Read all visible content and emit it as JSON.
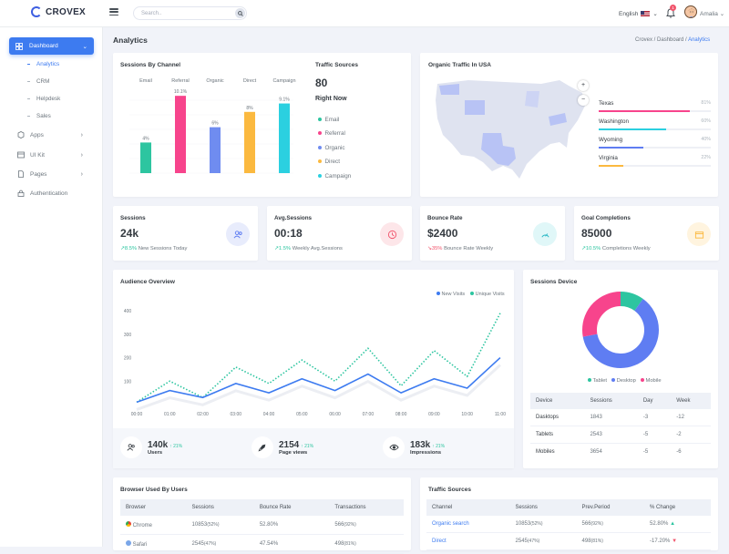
{
  "brand": {
    "name": "CROVEX"
  },
  "search": {
    "placeholder": "Search.."
  },
  "header": {
    "language": "English",
    "notification_count": "1",
    "user_name": "Amalia"
  },
  "sidebar": {
    "dashboard": "Dashboard",
    "subitems": [
      "Analytics",
      "CRM",
      "Helpdesk",
      "Sales"
    ],
    "items": [
      "Apps",
      "UI Kit",
      "Pages",
      "Authentication"
    ]
  },
  "page": {
    "title": "Analytics",
    "breadcrumb": [
      "Crovex",
      "Dashboard",
      "Analytics"
    ]
  },
  "sessions_by_channel": {
    "title": "Sessions By Channel"
  },
  "traffic_sources_mini": {
    "title": "Traffic Sources",
    "total": "80",
    "subtitle": "Right Now",
    "legend": [
      "Email",
      "Referral",
      "Organic",
      "Direct",
      "Campaign"
    ]
  },
  "chart_data": [
    {
      "type": "bar",
      "title": "Sessions By Channel",
      "categories": [
        "Email",
        "Referral",
        "Organic",
        "Direct",
        "Campaign"
      ],
      "values": [
        4,
        10.1,
        6,
        8,
        9.1
      ],
      "labels": [
        "4%",
        "10.1%",
        "6%",
        "8%",
        "9.1%"
      ],
      "colors": [
        "#2dc5a0",
        "#f7448c",
        "#6f8cf0",
        "#fbb93f",
        "#2bd0e0"
      ],
      "ylim": [
        0,
        12
      ]
    },
    {
      "type": "line",
      "title": "Audience Overview",
      "categories": [
        "00:00",
        "01:00",
        "02:00",
        "03:00",
        "04:00",
        "05:00",
        "06:00",
        "07:00",
        "08:00",
        "09:00",
        "10:00",
        "11:00"
      ],
      "series": [
        {
          "name": "New Visits",
          "color": "#3d7bf0",
          "values": [
            10,
            60,
            30,
            90,
            50,
            110,
            60,
            130,
            50,
            110,
            70,
            200
          ]
        },
        {
          "name": "Unique Visits",
          "color": "#2dc5a0",
          "values": [
            10,
            100,
            30,
            160,
            90,
            190,
            100,
            240,
            80,
            230,
            120,
            390
          ]
        }
      ],
      "yticks": [
        "100",
        "200",
        "300",
        "400"
      ],
      "ylim": [
        0,
        420
      ]
    },
    {
      "type": "pie",
      "title": "Sessions Device",
      "categories": [
        "Tablet",
        "Desktop",
        "Mobile"
      ],
      "values": [
        10,
        62,
        28
      ],
      "colors": [
        "#2dc5a0",
        "#5f7df2",
        "#f7448c"
      ]
    }
  ],
  "organic_traffic": {
    "title": "Organic Traffic In USA",
    "states": [
      {
        "name": "Texas",
        "pct": "81%",
        "value": 81,
        "color": "#f7448c"
      },
      {
        "name": "Washington",
        "pct": "60%",
        "value": 60,
        "color": "#2bd0e0"
      },
      {
        "name": "Wyoming",
        "pct": "40%",
        "value": 40,
        "color": "#5f7df2"
      },
      {
        "name": "Virginia",
        "pct": "22%",
        "value": 22,
        "color": "#fbb93f"
      }
    ]
  },
  "stats": [
    {
      "label": "Sessions",
      "value": "24k",
      "delta": "8.5%",
      "desc": "New Sessions Today",
      "trend": "up",
      "color": "#5f7df2",
      "bg": "#e8ecfc"
    },
    {
      "label": "Avg.Sessions",
      "value": "00:18",
      "delta": "1.5%",
      "desc": "Weekly Avg.Sessions",
      "trend": "up",
      "color": "#f1556c",
      "bg": "#fde6e9"
    },
    {
      "label": "Bounce Rate",
      "value": "$2400",
      "delta": "35%",
      "desc": "Bounce Rate Weekly",
      "trend": "down",
      "color": "#2bb9c5",
      "bg": "#e0f7f8"
    },
    {
      "label": "Goal Completions",
      "value": "85000",
      "delta": "10.5%",
      "desc": "Completions Weekly",
      "trend": "up",
      "color": "#fbb93f",
      "bg": "#fff4df"
    }
  ],
  "audience": {
    "title": "Audience Overview",
    "legend": [
      "New Visits",
      "Unique Visits"
    ],
    "footer": [
      {
        "value": "140k",
        "delta": "21%",
        "label": "Users"
      },
      {
        "value": "2154",
        "delta": "21%",
        "label": "Page views"
      },
      {
        "value": "183k",
        "delta": "21%",
        "label": "Impressions"
      }
    ]
  },
  "sessions_device": {
    "title": "Sessions Device",
    "legend": [
      "Tablet",
      "Desktop",
      "Mobile"
    ],
    "headers": [
      "Device",
      "Sessions",
      "Day",
      "Week"
    ],
    "rows": [
      [
        "Dasktops",
        "1843",
        "-3",
        "-12"
      ],
      [
        "Tablets",
        "2543",
        "-5",
        "-2"
      ],
      [
        "Mobiles",
        "3654",
        "-5",
        "-6"
      ]
    ]
  },
  "browsers": {
    "title": "Browser Used By Users",
    "headers": [
      "Browser",
      "Sessions",
      "Bounce Rate",
      "Transactions"
    ],
    "rows": [
      {
        "name": "Chrome",
        "sessions": "10853",
        "sess_pct": "(52%)",
        "bounce": "52.80%",
        "tx": "566",
        "tx_pct": "(92%)"
      },
      {
        "name": "Safari",
        "sessions": "2545",
        "sess_pct": "(47%)",
        "bounce": "47.54%",
        "tx": "498",
        "tx_pct": "(81%)"
      }
    ]
  },
  "traffic_table": {
    "title": "Traffic Sources",
    "headers": [
      "Channel",
      "Sessions",
      "Prev.Period",
      "% Change"
    ],
    "rows": [
      {
        "channel": "Organic search",
        "sessions": "10853",
        "sess_pct": "(52%)",
        "prev": "566",
        "prev_pct": "(92%)",
        "change": "52.80%",
        "dir": "up"
      },
      {
        "channel": "Direct",
        "sessions": "2545",
        "sess_pct": "(47%)",
        "prev": "498",
        "prev_pct": "(81%)",
        "change": "-17.20%",
        "dir": "down"
      }
    ]
  }
}
